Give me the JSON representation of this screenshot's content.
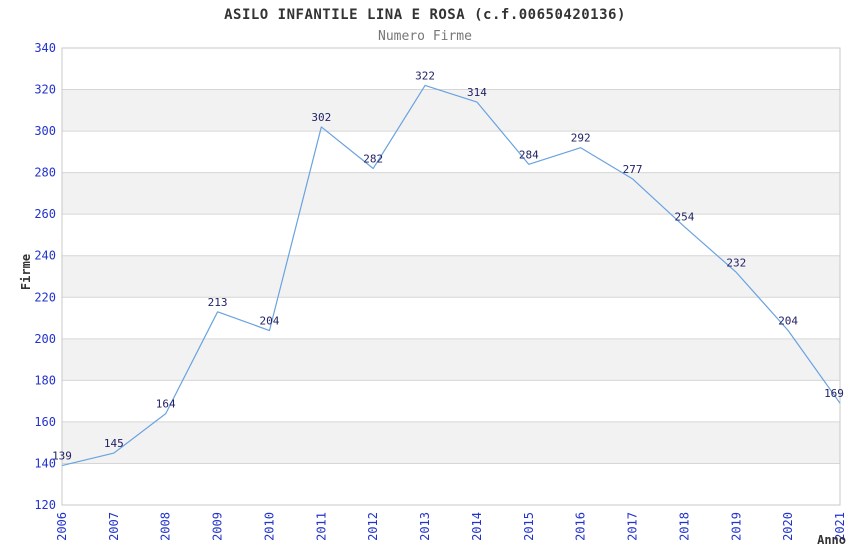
{
  "chart_data": {
    "type": "line",
    "title": "ASILO INFANTILE LINA E ROSA (c.f.00650420136)",
    "subtitle": "Numero Firme",
    "xlabel": "Anno",
    "ylabel": "Firme",
    "categories": [
      "2006",
      "2007",
      "2008",
      "2009",
      "2010",
      "2011",
      "2012",
      "2013",
      "2014",
      "2015",
      "2016",
      "2017",
      "2018",
      "2019",
      "2020",
      "2021"
    ],
    "series": [
      {
        "name": "Numero Firme",
        "values": [
          139,
          145,
          164,
          213,
          204,
          302,
          282,
          322,
          314,
          284,
          292,
          277,
          254,
          232,
          204,
          169
        ]
      }
    ],
    "ylim": [
      120,
      340
    ],
    "ytick_step": 20,
    "yticks": [
      120,
      140,
      160,
      180,
      200,
      220,
      240,
      260,
      280,
      300,
      320,
      340
    ],
    "grid": "horizontal",
    "bands": "alternating-gray",
    "legend_position": "none",
    "data_labels_shown": true,
    "x_tick_rotation_deg": -90,
    "colors": {
      "line": "#69a3e0",
      "tick_labels": "#2233cc",
      "data_labels": "#222266",
      "band_fill": "#f2f2f2",
      "gridline": "#d6d6d6",
      "plot_border": "#c8c8c8",
      "title": "#333333",
      "subtitle": "#777777",
      "axis_labels": "#333333",
      "background": "#ffffff"
    }
  }
}
